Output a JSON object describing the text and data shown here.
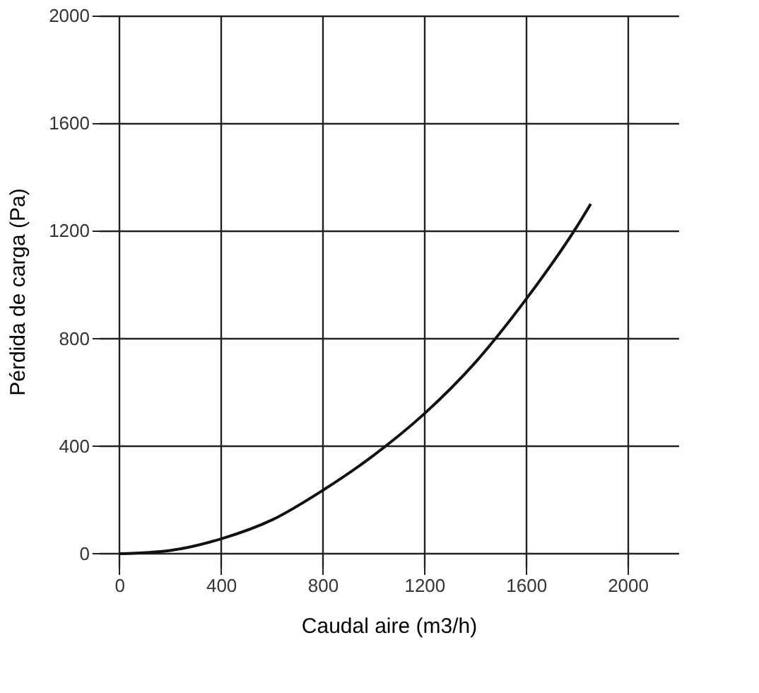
{
  "chart_data": {
    "type": "line",
    "xlabel": "Caudal aire (m3/h)",
    "ylabel": "Pérdida de carga (Pa)",
    "x": [
      0,
      200,
      400,
      600,
      800,
      1000,
      1200,
      1400,
      1600,
      1800,
      1855
    ],
    "series": [
      {
        "color": "#111111",
        "values": [
          0,
          12,
          55,
          125,
          235,
          365,
          520,
          710,
          945,
          1215,
          1300
        ]
      }
    ],
    "xlim": [
      -80,
      2200
    ],
    "ylim": [
      -50,
      2000
    ],
    "xticks": [
      0,
      400,
      800,
      1200,
      1600,
      2000
    ],
    "yticks": [
      0,
      400,
      800,
      1200,
      1600,
      2000
    ],
    "grid": true,
    "marker": "none",
    "line_style": "solid"
  }
}
